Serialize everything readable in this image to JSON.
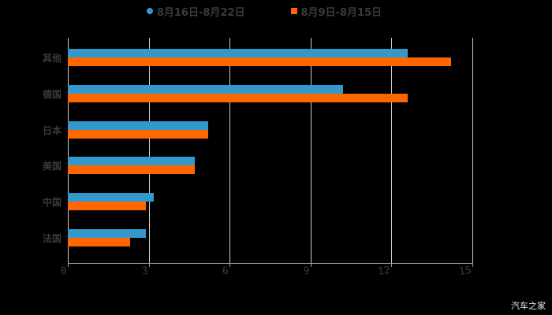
{
  "chart_data": {
    "type": "bar",
    "orientation": "horizontal",
    "title": "",
    "xlabel": "",
    "ylabel": "",
    "categories": [
      "其他",
      "德国",
      "日本",
      "美国",
      "中国",
      "法国"
    ],
    "series": [
      {
        "name": "8月16日-8月22日",
        "color": "#3399cc",
        "values": [
          12.6,
          10.2,
          5.2,
          4.7,
          3.2,
          2.9
        ]
      },
      {
        "name": "8月9日-8月15日",
        "color": "#ff6600",
        "values": [
          14.2,
          12.6,
          5.2,
          4.7,
          2.9,
          2.3
        ]
      }
    ],
    "xlim": [
      0,
      15
    ],
    "xticks": [
      "0",
      "3",
      "6",
      "9",
      "12",
      "15"
    ],
    "grid": true,
    "legend_position": "top"
  },
  "legend": {
    "series1": "8月16日-8月22日",
    "series2": "8月9日-8月15日"
  },
  "categories": [
    "其他",
    "德国",
    "日本",
    "美国",
    "中国",
    "法国"
  ],
  "ticks": [
    "0",
    "3",
    "6",
    "9",
    "12",
    "15"
  ],
  "watermark": "汽车之家",
  "colors": {
    "series1": "#3399cc",
    "series2": "#ff6600",
    "background": "#000000"
  }
}
